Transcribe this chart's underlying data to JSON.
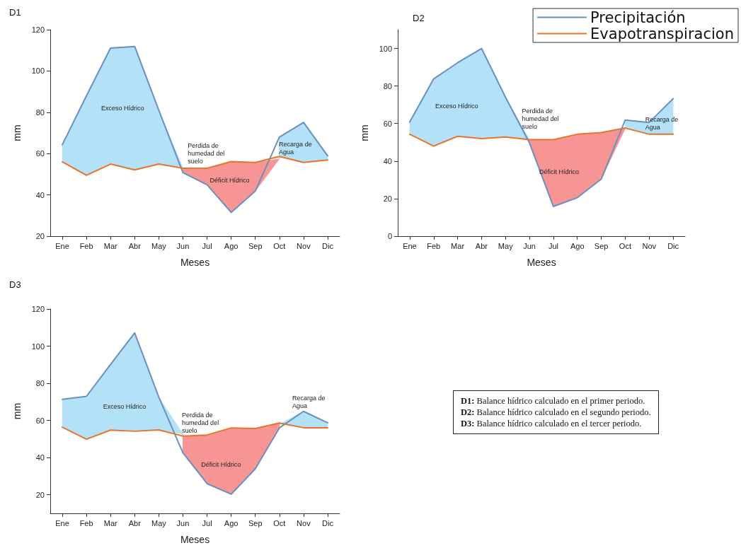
{
  "chart_data": [
    {
      "type": "line",
      "title": "D1",
      "xlabel": "Meses",
      "ylabel": "mm",
      "categories": [
        "Ene",
        "Feb",
        "Mar",
        "Abr",
        "May",
        "Jun",
        "Jul",
        "Ago",
        "Sep",
        "Oct",
        "Nov",
        "Dic"
      ],
      "ylim": [
        20,
        120
      ],
      "yticks": [
        20,
        40,
        60,
        80,
        100,
        120
      ],
      "grid": false,
      "legend": false,
      "marker": "none",
      "series": [
        {
          "color": "#6b8fbf",
          "values": [
            64.3,
            88,
            111.1,
            111.9,
            81,
            50.8,
            44.9,
            31.5,
            41.8,
            68,
            75.1,
            58.9
          ]
        },
        {
          "color": "#e8732a",
          "values": [
            56,
            49.5,
            54.9,
            52.1,
            54.9,
            52.9,
            52.9,
            56.1,
            55.7,
            58.6,
            55.7,
            56.9
          ]
        }
      ],
      "annotations": [
        "Exceso Hídrico",
        "Perdida de\nhumedad del\nsuelo",
        "Déficit Hídrico",
        "Recarga de\nAgua"
      ]
    },
    {
      "type": "line",
      "title": "D2",
      "xlabel": "Meses",
      "ylabel": "mm",
      "categories": [
        "Ene",
        "Feb",
        "Mar",
        "Abr",
        "May",
        "Jun",
        "Jul",
        "Ago",
        "Sep",
        "Oct",
        "Nov",
        "Dic"
      ],
      "ylim": [
        0,
        110
      ],
      "yticks": [
        0,
        20,
        40,
        60,
        80,
        100
      ],
      "grid": false,
      "legend": "top right",
      "marker": "none",
      "series": [
        {
          "name": "Precipitación",
          "color": "#6b8fbf",
          "values": [
            60.8,
            83.8,
            92.4,
            100,
            74,
            49.7,
            15.8,
            20.5,
            30.4,
            61.9,
            60.6,
            73.3
          ]
        },
        {
          "name": "Evapotranspiracion",
          "color": "#e8732a",
          "values": [
            54.3,
            48,
            53.2,
            52,
            52.8,
            51.4,
            51.4,
            54.3,
            55.2,
            57.6,
            54.3,
            54.3
          ]
        }
      ],
      "annotations": [
        "Exceso Hídrico",
        "Perdida de\nhumedad del\nsuelo",
        "Déficit Hídrico",
        "Recarga de\nAgua"
      ]
    },
    {
      "type": "line",
      "title": "D3",
      "xlabel": "Meses",
      "ylabel": "mm",
      "categories": [
        "Ene",
        "Feb",
        "Mar",
        "Abr",
        "May",
        "Jun",
        "Jul",
        "Ago",
        "Sep",
        "Oct",
        "Nov",
        "Dic"
      ],
      "ylim": [
        10,
        120
      ],
      "yticks": [
        20,
        40,
        60,
        80,
        100,
        120
      ],
      "grid": false,
      "legend": false,
      "marker": "none",
      "series": [
        {
          "color": "#6b8fbf",
          "values": [
            71.4,
            73,
            90.2,
            107.1,
            72.6,
            42.6,
            26,
            20.3,
            34,
            56,
            64.9,
            58.8
          ]
        },
        {
          "color": "#e8732a",
          "values": [
            56.4,
            49.9,
            54.8,
            54.2,
            54.9,
            51.6,
            52.2,
            56,
            55.7,
            58.6,
            56.1,
            56.1
          ]
        }
      ],
      "annotations": [
        "Exceso Hídrico",
        "Perdida de\nhumedad del\nsuelo",
        "Déficit Hídrico",
        "Recarga de\nAgua"
      ]
    },
    {
      "type": "other",
      "annotations": [
        "D1: Balance hídrico calculado en el primer periodo.",
        "D2: Balance hídrico calculado en el segundo periodo.",
        "D3: Balance hídrico calculado en el tercer periodo."
      ]
    }
  ]
}
